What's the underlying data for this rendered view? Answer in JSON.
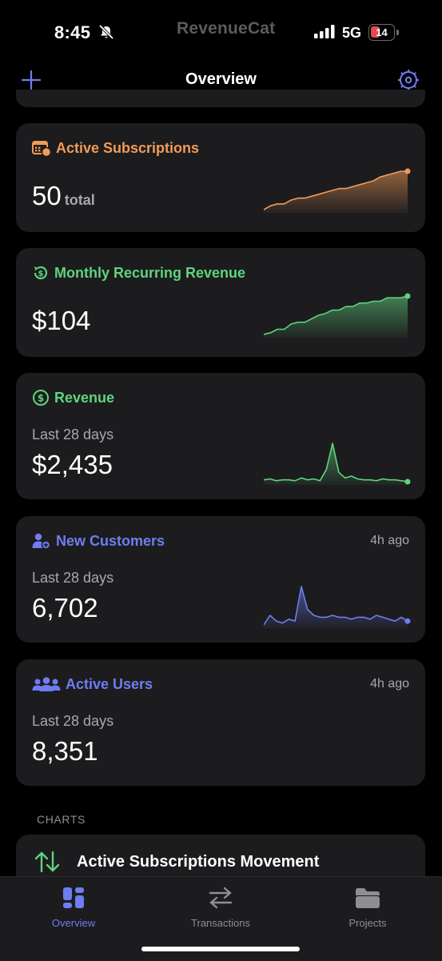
{
  "status": {
    "time": "8:45",
    "brand": "RevenueCat",
    "network": "5G",
    "battery": "14"
  },
  "nav": {
    "title": "Overview"
  },
  "cards": [
    {
      "title": "Active Subscriptions",
      "value": "50",
      "unit": "total",
      "accent": "#f29a58",
      "trend": [
        10,
        12,
        13,
        13,
        15,
        16,
        16,
        17,
        18,
        19,
        20,
        21,
        21,
        22,
        23,
        24,
        25,
        27,
        28,
        29,
        30,
        30
      ]
    },
    {
      "title": "Monthly Recurring Revenue",
      "value": "$104",
      "accent": "#5fd37e",
      "trend": [
        10,
        11,
        13,
        13,
        16,
        17,
        17,
        19,
        21,
        22,
        24,
        24,
        26,
        26,
        28,
        28,
        29,
        29,
        31,
        31,
        31,
        32
      ]
    },
    {
      "title": "Revenue",
      "subtitle": "Last 28 days",
      "value": "$2,435",
      "accent": "#5fd37e",
      "trend": [
        6,
        7,
        5,
        6,
        6,
        5,
        8,
        6,
        7,
        5,
        17,
        45,
        14,
        8,
        10,
        7,
        6,
        6,
        5,
        7,
        6,
        6,
        5,
        4
      ]
    },
    {
      "title": "New Customers",
      "subtitle": "Last 28 days",
      "value": "6,702",
      "ago": "4h ago",
      "accent": "#6f7df2",
      "trend": [
        10,
        15,
        12,
        11,
        13,
        12,
        30,
        18,
        15,
        14,
        14,
        15,
        14,
        14,
        13,
        14,
        14,
        13,
        15,
        14,
        13,
        12,
        14,
        12
      ]
    },
    {
      "title": "Active Users",
      "subtitle": "Last 28 days",
      "value": "8,351",
      "ago": "4h ago",
      "accent": "#6f7df2"
    }
  ],
  "charts_section": {
    "label": "CHARTS",
    "first_item": "Active Subscriptions Movement"
  },
  "tabs": [
    {
      "label": "Overview",
      "icon": "dashboard-icon",
      "active": true
    },
    {
      "label": "Transactions",
      "icon": "arrows-swap-icon",
      "active": false
    },
    {
      "label": "Projects",
      "icon": "folder-icon",
      "active": false
    }
  ]
}
